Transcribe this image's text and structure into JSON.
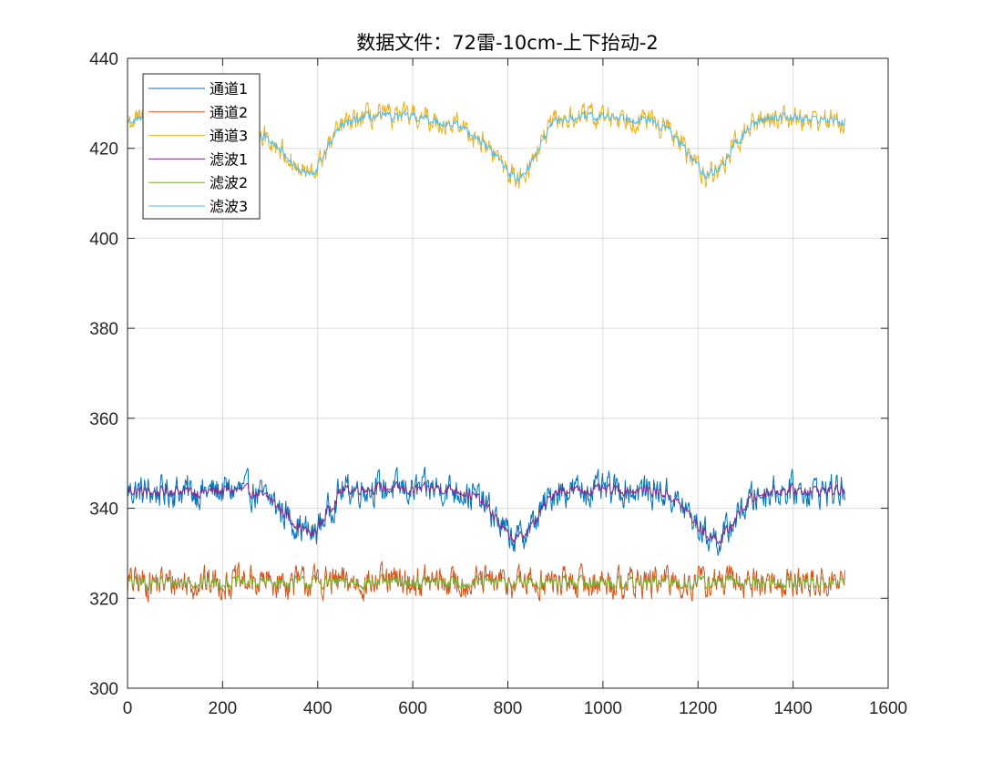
{
  "chart_data": {
    "type": "line",
    "title": "数据文件：72雷-10cm-上下抬动-2",
    "xlabel": "",
    "ylabel": "",
    "xlim": [
      0,
      1600
    ],
    "ylim": [
      300,
      440
    ],
    "xticks": [
      0,
      200,
      400,
      600,
      800,
      1000,
      1200,
      1400,
      1600
    ],
    "yticks": [
      300,
      320,
      340,
      360,
      380,
      400,
      420,
      440
    ],
    "grid": true,
    "legend_position": "top-left",
    "x_points": [
      0,
      50,
      100,
      150,
      200,
      250,
      300,
      330,
      360,
      390,
      420,
      450,
      500,
      550,
      600,
      650,
      700,
      740,
      770,
      800,
      820,
      850,
      880,
      900,
      950,
      1000,
      1050,
      1100,
      1140,
      1170,
      1200,
      1220,
      1250,
      1280,
      1310,
      1350,
      1400,
      1450,
      1510
    ],
    "series": [
      {
        "name": "通道1",
        "color": "#0072BD",
        "noise": 3.0,
        "values": [
          344,
          343.5,
          344,
          343.5,
          344,
          344,
          342,
          339,
          336,
          334,
          339,
          344,
          344.5,
          344.5,
          344,
          344.5,
          344,
          342,
          338.5,
          334,
          333,
          336,
          341,
          344,
          344,
          344,
          344,
          344,
          343,
          340,
          336,
          334,
          333,
          338,
          342,
          344,
          344,
          344,
          344
        ]
      },
      {
        "name": "通道2",
        "color": "#D95319",
        "noise": 3.0,
        "values": [
          323.5,
          323.5,
          323.5,
          323.5,
          323.5,
          323.5,
          323.5,
          323.5,
          323.5,
          323.5,
          323.5,
          323.5,
          323.5,
          323.5,
          323.5,
          323.5,
          323.5,
          323.5,
          323.5,
          323.5,
          323.5,
          323.5,
          323.5,
          323.5,
          323.5,
          323.5,
          323.5,
          323.5,
          323.5,
          323.5,
          323.5,
          323.5,
          323.5,
          323.5,
          323.5,
          323.5,
          323.5,
          323.5,
          323.5
        ]
      },
      {
        "name": "通道3",
        "color": "#EDB120",
        "noise": 2.2,
        "values": [
          426,
          426.5,
          427,
          426.5,
          426,
          424,
          422,
          419,
          415,
          414,
          420,
          425,
          427,
          427,
          427,
          426,
          425,
          422,
          419,
          415,
          413,
          417,
          423,
          426,
          427,
          427,
          427,
          426,
          424,
          420,
          416,
          414,
          416,
          421,
          425,
          427,
          427,
          426.5,
          426
        ]
      },
      {
        "name": "滤波1",
        "color": "#7E2F8E",
        "noise": 1.0,
        "values": [
          344,
          343.5,
          344,
          343.5,
          344,
          344,
          342,
          339,
          336,
          334,
          339,
          344,
          344.5,
          344.5,
          344,
          344.5,
          344,
          342,
          338.5,
          334,
          333,
          336,
          341,
          344,
          344,
          344,
          344,
          344,
          343,
          340,
          336,
          334,
          333,
          338,
          342,
          344,
          344,
          344,
          344
        ]
      },
      {
        "name": "滤波2",
        "color": "#77AC30",
        "noise": 1.2,
        "values": [
          323.5,
          323.5,
          323.5,
          323.5,
          323.5,
          323.5,
          323.5,
          323.5,
          323.5,
          323.5,
          323.5,
          323.5,
          323.5,
          323.5,
          323.5,
          323.5,
          323.5,
          323.5,
          323.5,
          323.5,
          323.5,
          323.5,
          323.5,
          323.5,
          323.5,
          323.5,
          323.5,
          323.5,
          323.5,
          323.5,
          323.5,
          323.5,
          323.5,
          323.5,
          323.5,
          323.5,
          323.5,
          323.5,
          323.5
        ]
      },
      {
        "name": "滤波3",
        "color": "#4DBEEE",
        "noise": 0.8,
        "values": [
          426,
          426.5,
          427,
          426.5,
          426,
          424,
          422,
          419,
          415,
          414,
          420,
          425,
          427,
          427,
          427,
          426,
          425,
          422,
          419,
          415,
          413,
          417,
          423,
          426,
          427,
          427,
          427,
          426,
          424,
          420,
          416,
          414,
          416,
          421,
          425,
          427,
          427,
          426.5,
          426
        ]
      }
    ]
  }
}
